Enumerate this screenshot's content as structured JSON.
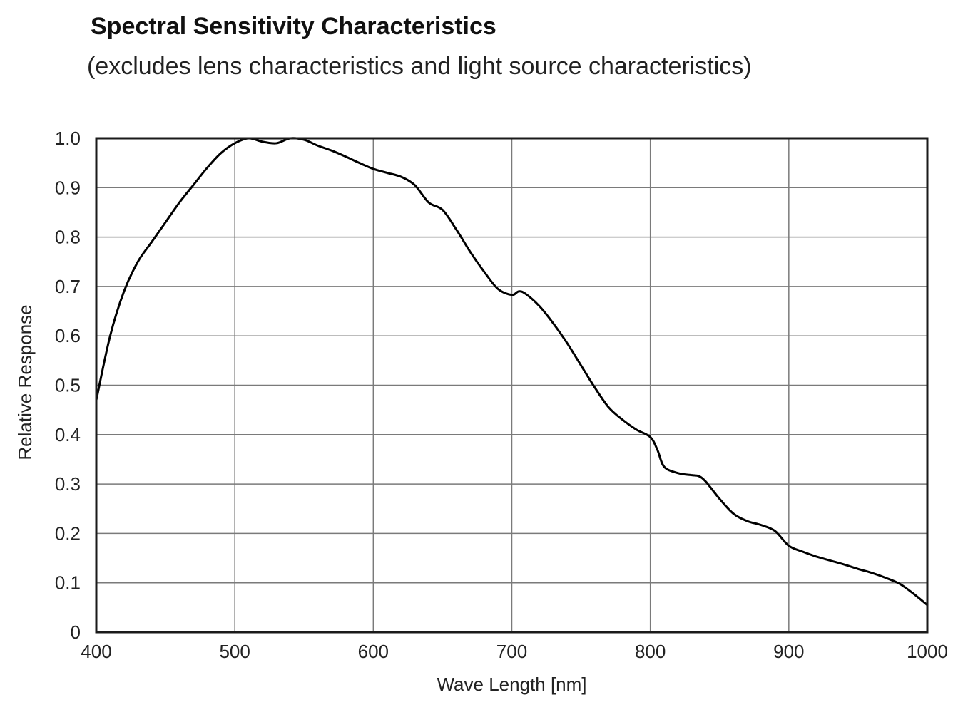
{
  "chart_data": {
    "type": "line",
    "title": "Spectral Sensitivity Characteristics",
    "subtitle": "(excludes lens characteristics and light source characteristics)",
    "xlabel": "Wave Length [nm]",
    "ylabel": "Relative Response",
    "xlim": [
      400,
      1000
    ],
    "ylim": [
      0,
      1.0
    ],
    "x_ticks": [
      400,
      500,
      600,
      700,
      800,
      900,
      1000
    ],
    "x_tick_labels": [
      "400",
      "500",
      "600",
      "700",
      "800",
      "900",
      "1000"
    ],
    "y_ticks": [
      0,
      0.1,
      0.2,
      0.3,
      0.4,
      0.5,
      0.6,
      0.7,
      0.8,
      0.9,
      1.0
    ],
    "y_tick_labels": [
      "0",
      "0.1",
      "0.2",
      "0.3",
      "0.4",
      "0.5",
      "0.6",
      "0.7",
      "0.8",
      "0.9",
      "1.0"
    ],
    "grid": true,
    "colors": {
      "line": "#000000",
      "grid": "#7a7a7a",
      "frame": "#1a1a1a"
    },
    "series": [
      {
        "x": [
          400,
          410,
          420,
          430,
          440,
          450,
          460,
          470,
          480,
          490,
          500,
          510,
          520,
          530,
          540,
          550,
          560,
          570,
          580,
          590,
          600,
          610,
          620,
          630,
          640,
          650,
          660,
          670,
          680,
          690,
          700,
          705,
          710,
          720,
          730,
          740,
          750,
          760,
          770,
          780,
          790,
          800,
          805,
          810,
          820,
          830,
          835,
          840,
          850,
          860,
          870,
          880,
          890,
          900,
          910,
          920,
          930,
          940,
          950,
          960,
          970,
          980,
          990,
          1000
        ],
        "y": [
          0.47,
          0.6,
          0.69,
          0.75,
          0.79,
          0.83,
          0.87,
          0.905,
          0.94,
          0.97,
          0.99,
          1.0,
          0.993,
          0.99,
          1.0,
          0.997,
          0.985,
          0.975,
          0.963,
          0.95,
          0.938,
          0.93,
          0.922,
          0.905,
          0.87,
          0.855,
          0.815,
          0.77,
          0.73,
          0.695,
          0.683,
          0.69,
          0.685,
          0.66,
          0.625,
          0.585,
          0.54,
          0.495,
          0.455,
          0.43,
          0.41,
          0.395,
          0.37,
          0.335,
          0.322,
          0.318,
          0.316,
          0.305,
          0.27,
          0.24,
          0.225,
          0.217,
          0.205,
          0.175,
          0.163,
          0.153,
          0.145,
          0.137,
          0.128,
          0.12,
          0.11,
          0.098,
          0.078,
          0.055
        ]
      }
    ]
  }
}
